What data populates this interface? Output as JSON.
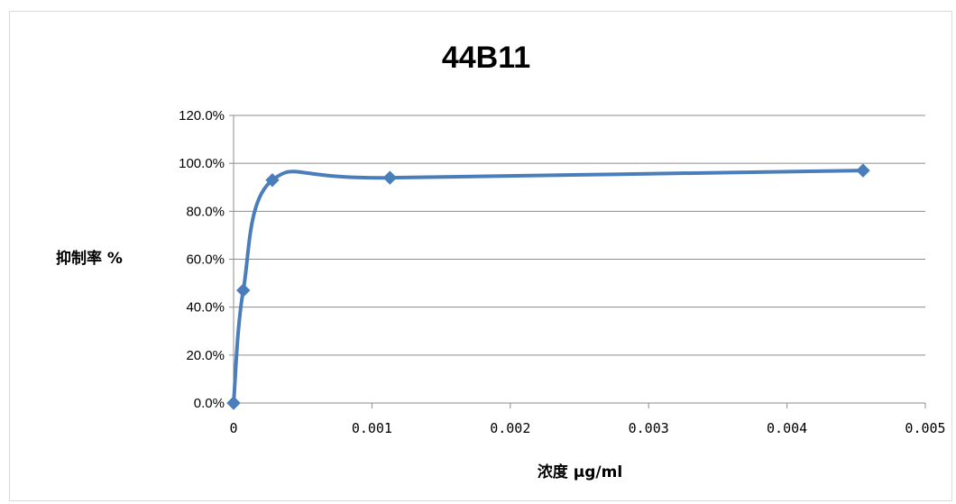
{
  "chart_data": {
    "type": "line",
    "title": "44B11",
    "xlabel": "浓度 μg/ml",
    "ylabel": "抑制率 %",
    "xlim": [
      0,
      0.005
    ],
    "ylim": [
      0,
      1.2
    ],
    "x_ticks": [
      0,
      0.001,
      0.002,
      0.003,
      0.004,
      0.005
    ],
    "x_tick_labels": [
      "0",
      "0.001",
      "0.002",
      "0.003",
      "0.004",
      "0.005"
    ],
    "y_ticks": [
      0,
      0.2,
      0.4,
      0.6,
      0.8,
      1.0,
      1.2
    ],
    "y_tick_labels": [
      "0.0%",
      "20.0%",
      "40.0%",
      "60.0%",
      "80.0%",
      "100.0%",
      "120.0%"
    ],
    "grid": "horizontal",
    "legend": "none",
    "smooth": true,
    "marker": "diamond",
    "series": [
      {
        "color": "#4a7ebb",
        "points": [
          {
            "x": 0.0,
            "y": 0.0
          },
          {
            "x": 7e-05,
            "y": 0.47
          },
          {
            "x": 0.00028,
            "y": 0.93
          },
          {
            "x": 0.00113,
            "y": 0.94
          },
          {
            "x": 0.00455,
            "y": 0.97
          }
        ]
      }
    ]
  }
}
